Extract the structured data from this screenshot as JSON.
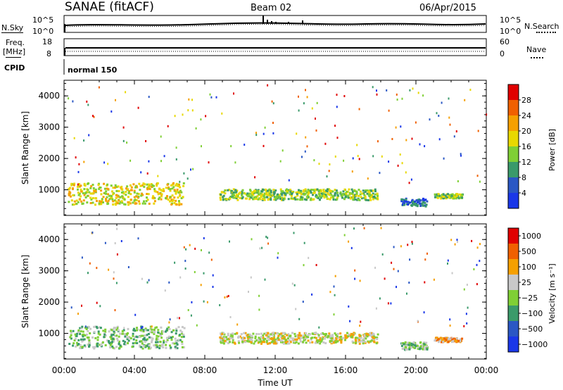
{
  "header": {
    "station": "SANAE (fitACF)",
    "beam": "Beam 02",
    "date": "06/Apr/2015"
  },
  "top_panels": {
    "nsky_label": "N.Sky",
    "nsearch_label": "N.Search",
    "nsky_ticks": [
      "10^5",
      "10^0"
    ],
    "nsearch_ticks": [
      "10^5",
      "10^0"
    ],
    "freq_label": "Freq.",
    "freq_unit": "[MHz]",
    "freq_ticks": [
      "18",
      "8"
    ],
    "nave_label": "Nave",
    "nave_ticks": [
      "60",
      "0"
    ],
    "cpid_label": "CPID",
    "cpid_value": "normal 150"
  },
  "xaxis": {
    "label": "Time UT",
    "ticks": [
      "00:00",
      "04:00",
      "08:00",
      "12:00",
      "16:00",
      "20:00",
      "00:00"
    ]
  },
  "chart_data": [
    {
      "type": "heatmap",
      "panel": "power",
      "ylabel": "Slant Range [km]",
      "yticks": [
        1000,
        2000,
        3000,
        4000
      ],
      "ylim": [
        180,
        4500
      ],
      "xlim_hours": [
        0,
        24
      ],
      "colorbar_label": "Power [dB]",
      "colorbar_ticks": [
        "28",
        "24",
        "20",
        "16",
        "12",
        "8",
        "4"
      ],
      "colors": [
        "#1a37e8",
        "#2a57c4",
        "#3a9a6a",
        "#7fcf35",
        "#e8d800",
        "#f5a000",
        "#f06000",
        "#e00000"
      ],
      "regions": [
        {
          "t0": 0.2,
          "t1": 6.8,
          "r0": 550,
          "r1": 1250,
          "level": 4
        },
        {
          "t0": 8.8,
          "t1": 17.8,
          "r0": 700,
          "r1": 1050,
          "level": 3
        },
        {
          "t0": 19.1,
          "t1": 20.6,
          "r0": 500,
          "r1": 750,
          "level": 1
        },
        {
          "t0": 21.0,
          "t1": 22.6,
          "r0": 750,
          "r1": 900,
          "level": 3
        }
      ]
    },
    {
      "type": "heatmap",
      "panel": "velocity",
      "ylabel": "Slant Range [km]",
      "yticks": [
        1000,
        2000,
        3000,
        4000
      ],
      "ylim": [
        180,
        4500
      ],
      "xlim_hours": [
        0,
        24
      ],
      "colorbar_label": "Velocity [m s⁻¹]",
      "colorbar_ticks": [
        "1000",
        "500",
        "100",
        "25",
        "−25",
        "−100",
        "−500",
        "−1000"
      ],
      "colors": [
        "#1a37e8",
        "#2a57c4",
        "#3a9a6a",
        "#7fcf35",
        "#c8c8c8",
        "#f5a000",
        "#f06000",
        "#e00000"
      ],
      "regions": [
        {
          "t0": 0.2,
          "t1": 6.8,
          "r0": 550,
          "r1": 1250,
          "level": 3
        },
        {
          "t0": 8.8,
          "t1": 17.8,
          "r0": 700,
          "r1": 1050,
          "level": 4
        },
        {
          "t0": 19.1,
          "t1": 20.6,
          "r0": 500,
          "r1": 750,
          "level": 3
        },
        {
          "t0": 21.0,
          "t1": 22.6,
          "r0": 750,
          "r1": 900,
          "level": 5
        }
      ]
    }
  ]
}
